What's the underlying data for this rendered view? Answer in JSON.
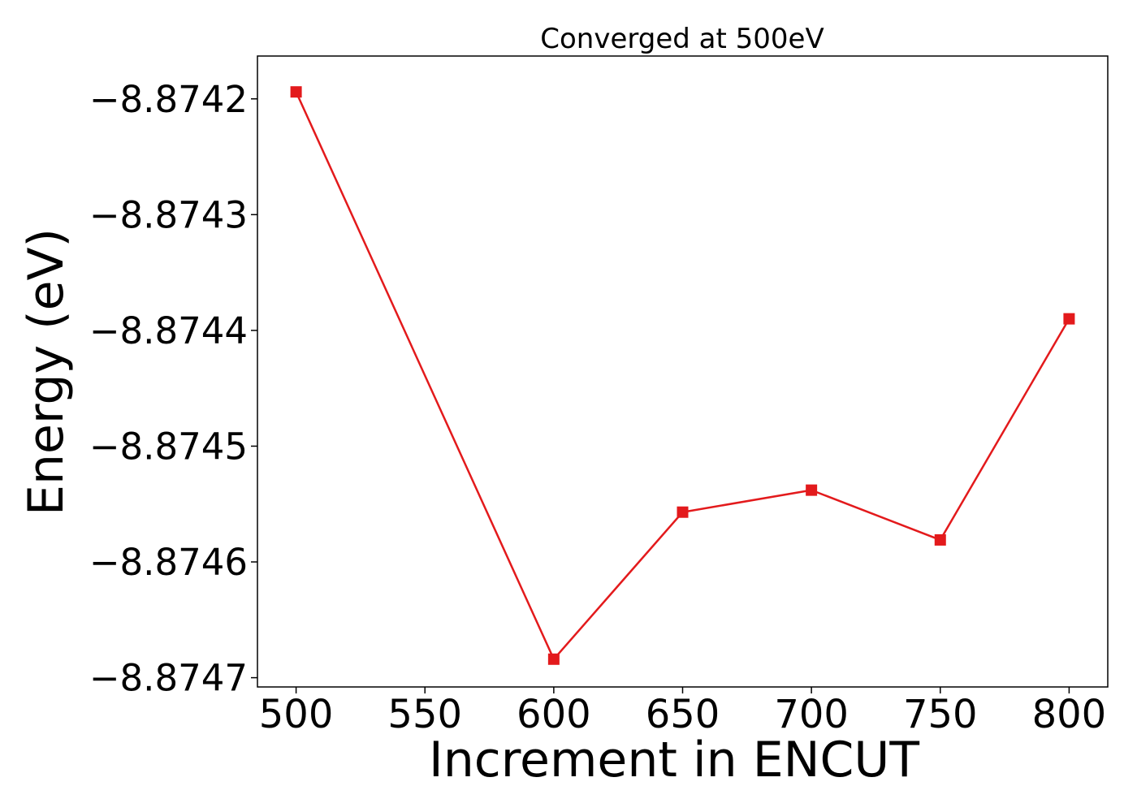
{
  "chart_data": {
    "type": "line",
    "title": "Converged at 500eV",
    "xlabel": "Increment in ENCUT",
    "ylabel": "Energy (eV)",
    "x": [
      500,
      600,
      650,
      700,
      750,
      800
    ],
    "series": [
      {
        "values": [
          -8.874194,
          -8.874684,
          -8.874557,
          -8.874538,
          -8.874581,
          -8.87439
        ],
        "color": "#e31a1c",
        "marker": "square"
      }
    ],
    "xlim": [
      485,
      815
    ],
    "ylim": [
      -8.874708,
      -8.874163
    ],
    "xticks": [
      500,
      550,
      600,
      650,
      700,
      750,
      800
    ],
    "xtick_labels": [
      "500",
      "550",
      "600",
      "650",
      "700",
      "750",
      "800"
    ],
    "yticks": [
      -8.8742,
      -8.8743,
      -8.8744,
      -8.8745,
      -8.8746,
      -8.8747
    ],
    "ytick_labels": [
      "−8.8742",
      "−8.8743",
      "−8.8744",
      "−8.8745",
      "−8.8746",
      "−8.8747"
    ],
    "grid": false,
    "legend": "none"
  }
}
